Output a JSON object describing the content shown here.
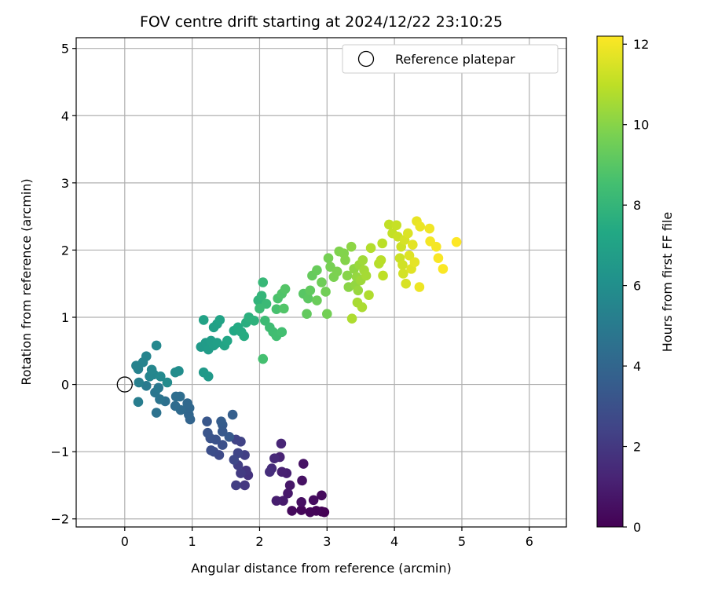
{
  "chart_data": {
    "type": "scatter",
    "title": "FOV centre drift starting at 2024/12/22 23:10:25",
    "xlabel": "Angular distance from reference (arcmin)",
    "ylabel": "Rotation from reference (arcmin)",
    "xlim": [
      -0.72,
      6.55
    ],
    "ylim": [
      -2.12,
      5.16
    ],
    "xticks": [
      0,
      1,
      2,
      3,
      4,
      5,
      6
    ],
    "yticks": [
      -2,
      -1,
      0,
      1,
      2,
      3,
      4,
      5
    ],
    "grid": true,
    "legend": {
      "position": "top-right",
      "entries": [
        "Reference platepar"
      ]
    },
    "reference_point": {
      "name": "Reference platepar",
      "x": 0.0,
      "y": 0.0
    },
    "colorbar": {
      "label": "Hours from first FF file",
      "min": 0,
      "max": 12.2,
      "ticks": [
        0,
        2,
        4,
        6,
        8,
        10,
        12
      ],
      "colormap": "viridis"
    },
    "points": [
      {
        "x": 2.96,
        "y": -1.9,
        "h": 0.0
      },
      {
        "x": 2.92,
        "y": -1.89,
        "h": 0.05
      },
      {
        "x": 2.84,
        "y": -1.88,
        "h": 0.1
      },
      {
        "x": 2.75,
        "y": -1.9,
        "h": 0.15
      },
      {
        "x": 2.62,
        "y": -1.87,
        "h": 0.2
      },
      {
        "x": 2.48,
        "y": -1.88,
        "h": 0.3
      },
      {
        "x": 2.92,
        "y": -1.65,
        "h": 0.3
      },
      {
        "x": 2.8,
        "y": -1.72,
        "h": 0.4
      },
      {
        "x": 2.62,
        "y": -1.75,
        "h": 0.5
      },
      {
        "x": 2.63,
        "y": -1.43,
        "h": 0.55
      },
      {
        "x": 2.65,
        "y": -1.18,
        "h": 0.6
      },
      {
        "x": 2.45,
        "y": -1.5,
        "h": 0.75
      },
      {
        "x": 2.42,
        "y": -1.62,
        "h": 0.8
      },
      {
        "x": 2.35,
        "y": -1.73,
        "h": 0.9
      },
      {
        "x": 2.25,
        "y": -1.73,
        "h": 1.0
      },
      {
        "x": 2.4,
        "y": -1.32,
        "h": 1.05
      },
      {
        "x": 2.33,
        "y": -1.3,
        "h": 1.1
      },
      {
        "x": 2.3,
        "y": -1.08,
        "h": 1.2
      },
      {
        "x": 2.32,
        "y": -0.88,
        "h": 1.3
      },
      {
        "x": 2.22,
        "y": -1.1,
        "h": 1.4
      },
      {
        "x": 2.18,
        "y": -1.25,
        "h": 1.5
      },
      {
        "x": 2.15,
        "y": -1.3,
        "h": 1.6
      },
      {
        "x": 1.83,
        "y": -1.35,
        "h": 1.8
      },
      {
        "x": 1.8,
        "y": -1.28,
        "h": 1.9
      },
      {
        "x": 1.78,
        "y": -1.5,
        "h": 2.0
      },
      {
        "x": 1.72,
        "y": -1.32,
        "h": 2.1
      },
      {
        "x": 1.65,
        "y": -1.5,
        "h": 2.2
      },
      {
        "x": 1.68,
        "y": -1.2,
        "h": 2.25
      },
      {
        "x": 1.78,
        "y": -1.05,
        "h": 2.3
      },
      {
        "x": 1.72,
        "y": -0.85,
        "h": 2.4
      },
      {
        "x": 1.65,
        "y": -0.82,
        "h": 2.45
      },
      {
        "x": 1.68,
        "y": -1.02,
        "h": 2.5
      },
      {
        "x": 1.62,
        "y": -1.12,
        "h": 2.6
      },
      {
        "x": 1.4,
        "y": -1.05,
        "h": 2.7
      },
      {
        "x": 1.32,
        "y": -1.0,
        "h": 2.8
      },
      {
        "x": 1.28,
        "y": -0.98,
        "h": 2.9
      },
      {
        "x": 1.45,
        "y": -0.9,
        "h": 3.0
      },
      {
        "x": 1.35,
        "y": -0.82,
        "h": 3.05
      },
      {
        "x": 1.27,
        "y": -0.8,
        "h": 3.1
      },
      {
        "x": 1.23,
        "y": -0.72,
        "h": 3.2
      },
      {
        "x": 1.22,
        "y": -0.55,
        "h": 3.3
      },
      {
        "x": 1.45,
        "y": -0.7,
        "h": 3.4
      },
      {
        "x": 1.55,
        "y": -0.78,
        "h": 3.45
      },
      {
        "x": 1.45,
        "y": -0.6,
        "h": 3.5
      },
      {
        "x": 1.43,
        "y": -0.55,
        "h": 3.55
      },
      {
        "x": 1.6,
        "y": -0.45,
        "h": 3.65
      },
      {
        "x": 0.97,
        "y": -0.52,
        "h": 3.9
      },
      {
        "x": 0.95,
        "y": -0.45,
        "h": 4.0
      },
      {
        "x": 0.96,
        "y": -0.35,
        "h": 4.05
      },
      {
        "x": 0.93,
        "y": -0.28,
        "h": 4.1
      },
      {
        "x": 0.83,
        "y": -0.38,
        "h": 4.2
      },
      {
        "x": 0.75,
        "y": -0.32,
        "h": 4.3
      },
      {
        "x": 0.82,
        "y": -0.18,
        "h": 4.35
      },
      {
        "x": 0.76,
        "y": -0.18,
        "h": 4.4
      },
      {
        "x": 0.6,
        "y": -0.25,
        "h": 4.5
      },
      {
        "x": 0.47,
        "y": -0.42,
        "h": 4.6
      },
      {
        "x": 0.52,
        "y": -0.22,
        "h": 4.7
      },
      {
        "x": 0.45,
        "y": -0.12,
        "h": 4.8
      },
      {
        "x": 0.5,
        "y": -0.05,
        "h": 4.9
      },
      {
        "x": 0.32,
        "y": -0.02,
        "h": 5.0
      },
      {
        "x": 0.2,
        "y": -0.26,
        "h": 5.1
      },
      {
        "x": 0.21,
        "y": 0.03,
        "h": 5.2
      },
      {
        "x": 0.2,
        "y": 0.23,
        "h": 5.3
      },
      {
        "x": 0.17,
        "y": 0.28,
        "h": 5.35
      },
      {
        "x": 0.27,
        "y": 0.33,
        "h": 5.4
      },
      {
        "x": 0.32,
        "y": 0.42,
        "h": 5.45
      },
      {
        "x": 0.37,
        "y": 0.12,
        "h": 5.5
      },
      {
        "x": 0.43,
        "y": 0.15,
        "h": 5.55
      },
      {
        "x": 0.4,
        "y": 0.22,
        "h": 5.6
      },
      {
        "x": 0.47,
        "y": 0.58,
        "h": 5.65
      },
      {
        "x": 0.53,
        "y": 0.12,
        "h": 5.7
      },
      {
        "x": 0.63,
        "y": 0.03,
        "h": 5.8
      },
      {
        "x": 0.75,
        "y": 0.18,
        "h": 5.85
      },
      {
        "x": 0.8,
        "y": 0.2,
        "h": 5.9
      },
      {
        "x": 1.17,
        "y": 0.18,
        "h": 6.5
      },
      {
        "x": 1.24,
        "y": 0.12,
        "h": 6.55
      },
      {
        "x": 1.13,
        "y": 0.56,
        "h": 6.6
      },
      {
        "x": 1.2,
        "y": 0.62,
        "h": 6.65
      },
      {
        "x": 1.24,
        "y": 0.52,
        "h": 6.7
      },
      {
        "x": 1.28,
        "y": 0.65,
        "h": 6.75
      },
      {
        "x": 1.32,
        "y": 0.58,
        "h": 6.8
      },
      {
        "x": 1.37,
        "y": 0.62,
        "h": 6.85
      },
      {
        "x": 1.32,
        "y": 0.85,
        "h": 6.9
      },
      {
        "x": 1.37,
        "y": 0.9,
        "h": 6.95
      },
      {
        "x": 1.17,
        "y": 0.96,
        "h": 7.0
      },
      {
        "x": 1.41,
        "y": 0.96,
        "h": 7.05
      },
      {
        "x": 1.48,
        "y": 0.58,
        "h": 7.1
      },
      {
        "x": 1.52,
        "y": 0.65,
        "h": 7.2
      },
      {
        "x": 1.62,
        "y": 0.8,
        "h": 7.3
      },
      {
        "x": 1.68,
        "y": 0.85,
        "h": 7.4
      },
      {
        "x": 1.73,
        "y": 0.78,
        "h": 7.45
      },
      {
        "x": 1.77,
        "y": 0.72,
        "h": 7.5
      },
      {
        "x": 1.8,
        "y": 0.92,
        "h": 7.6
      },
      {
        "x": 1.84,
        "y": 1.0,
        "h": 7.7
      },
      {
        "x": 1.92,
        "y": 0.95,
        "h": 7.8
      },
      {
        "x": 1.98,
        "y": 1.25,
        "h": 7.9
      },
      {
        "x": 2.03,
        "y": 1.32,
        "h": 8.0
      },
      {
        "x": 2.05,
        "y": 1.52,
        "h": 8.1
      },
      {
        "x": 2.1,
        "y": 1.2,
        "h": 8.2
      },
      {
        "x": 2.0,
        "y": 1.13,
        "h": 8.25
      },
      {
        "x": 2.08,
        "y": 0.95,
        "h": 8.3
      },
      {
        "x": 2.15,
        "y": 0.85,
        "h": 8.35
      },
      {
        "x": 2.2,
        "y": 0.78,
        "h": 8.4
      },
      {
        "x": 2.25,
        "y": 0.72,
        "h": 8.45
      },
      {
        "x": 2.33,
        "y": 0.78,
        "h": 8.5
      },
      {
        "x": 2.05,
        "y": 0.38,
        "h": 8.55
      },
      {
        "x": 2.25,
        "y": 1.12,
        "h": 8.6
      },
      {
        "x": 2.27,
        "y": 1.28,
        "h": 8.7
      },
      {
        "x": 2.33,
        "y": 1.35,
        "h": 8.8
      },
      {
        "x": 2.36,
        "y": 1.13,
        "h": 8.85
      },
      {
        "x": 2.38,
        "y": 1.42,
        "h": 8.9
      },
      {
        "x": 2.65,
        "y": 1.35,
        "h": 9.0
      },
      {
        "x": 2.72,
        "y": 1.28,
        "h": 9.1
      },
      {
        "x": 2.75,
        "y": 1.4,
        "h": 9.2
      },
      {
        "x": 2.7,
        "y": 1.05,
        "h": 9.25
      },
      {
        "x": 2.78,
        "y": 1.62,
        "h": 9.3
      },
      {
        "x": 2.85,
        "y": 1.7,
        "h": 9.35
      },
      {
        "x": 2.85,
        "y": 1.25,
        "h": 9.4
      },
      {
        "x": 2.92,
        "y": 1.52,
        "h": 9.5
      },
      {
        "x": 2.98,
        "y": 1.38,
        "h": 9.55
      },
      {
        "x": 3.0,
        "y": 1.05,
        "h": 9.6
      },
      {
        "x": 3.02,
        "y": 1.88,
        "h": 9.65
      },
      {
        "x": 3.05,
        "y": 1.75,
        "h": 9.7
      },
      {
        "x": 3.1,
        "y": 1.6,
        "h": 9.75
      },
      {
        "x": 3.15,
        "y": 1.68,
        "h": 9.8
      },
      {
        "x": 3.18,
        "y": 1.98,
        "h": 9.85
      },
      {
        "x": 3.25,
        "y": 1.95,
        "h": 9.9
      },
      {
        "x": 3.27,
        "y": 1.85,
        "h": 9.95
      },
      {
        "x": 3.3,
        "y": 1.62,
        "h": 10.0
      },
      {
        "x": 3.32,
        "y": 1.45,
        "h": 10.05
      },
      {
        "x": 3.36,
        "y": 2.05,
        "h": 10.1
      },
      {
        "x": 3.4,
        "y": 1.72,
        "h": 10.15
      },
      {
        "x": 3.42,
        "y": 1.48,
        "h": 10.2
      },
      {
        "x": 3.44,
        "y": 1.6,
        "h": 10.25
      },
      {
        "x": 3.46,
        "y": 1.4,
        "h": 10.3
      },
      {
        "x": 3.48,
        "y": 1.78,
        "h": 10.35
      },
      {
        "x": 3.5,
        "y": 1.55,
        "h": 10.4
      },
      {
        "x": 3.53,
        "y": 1.85,
        "h": 10.45
      },
      {
        "x": 3.55,
        "y": 1.7,
        "h": 10.5
      },
      {
        "x": 3.58,
        "y": 1.62,
        "h": 10.55
      },
      {
        "x": 3.45,
        "y": 1.22,
        "h": 10.6
      },
      {
        "x": 3.52,
        "y": 1.15,
        "h": 10.65
      },
      {
        "x": 3.37,
        "y": 0.98,
        "h": 10.7
      },
      {
        "x": 3.62,
        "y": 1.33,
        "h": 10.75
      },
      {
        "x": 3.65,
        "y": 2.03,
        "h": 10.8
      },
      {
        "x": 3.77,
        "y": 1.8,
        "h": 10.85
      },
      {
        "x": 3.8,
        "y": 1.85,
        "h": 10.9
      },
      {
        "x": 3.82,
        "y": 2.1,
        "h": 10.95
      },
      {
        "x": 3.83,
        "y": 1.62,
        "h": 11.0
      },
      {
        "x": 3.92,
        "y": 2.38,
        "h": 11.05
      },
      {
        "x": 3.97,
        "y": 2.25,
        "h": 11.1
      },
      {
        "x": 4.03,
        "y": 2.37,
        "h": 11.15
      },
      {
        "x": 4.05,
        "y": 2.2,
        "h": 11.2
      },
      {
        "x": 4.08,
        "y": 1.88,
        "h": 11.25
      },
      {
        "x": 4.1,
        "y": 2.05,
        "h": 11.3
      },
      {
        "x": 4.12,
        "y": 1.78,
        "h": 11.35
      },
      {
        "x": 4.13,
        "y": 1.65,
        "h": 11.4
      },
      {
        "x": 4.15,
        "y": 2.15,
        "h": 11.45
      },
      {
        "x": 4.17,
        "y": 1.5,
        "h": 11.5
      },
      {
        "x": 4.2,
        "y": 2.25,
        "h": 11.55
      },
      {
        "x": 4.22,
        "y": 1.92,
        "h": 11.6
      },
      {
        "x": 4.25,
        "y": 1.72,
        "h": 11.65
      },
      {
        "x": 4.27,
        "y": 2.08,
        "h": 11.7
      },
      {
        "x": 4.3,
        "y": 1.82,
        "h": 11.75
      },
      {
        "x": 4.33,
        "y": 2.43,
        "h": 11.8
      },
      {
        "x": 4.38,
        "y": 2.35,
        "h": 11.85
      },
      {
        "x": 4.37,
        "y": 1.45,
        "h": 11.9
      },
      {
        "x": 4.52,
        "y": 2.32,
        "h": 11.95
      },
      {
        "x": 4.53,
        "y": 2.13,
        "h": 12.0
      },
      {
        "x": 4.62,
        "y": 2.05,
        "h": 12.05
      },
      {
        "x": 4.65,
        "y": 1.88,
        "h": 12.1
      },
      {
        "x": 4.72,
        "y": 1.72,
        "h": 12.15
      },
      {
        "x": 4.92,
        "y": 2.12,
        "h": 12.2
      }
    ]
  }
}
